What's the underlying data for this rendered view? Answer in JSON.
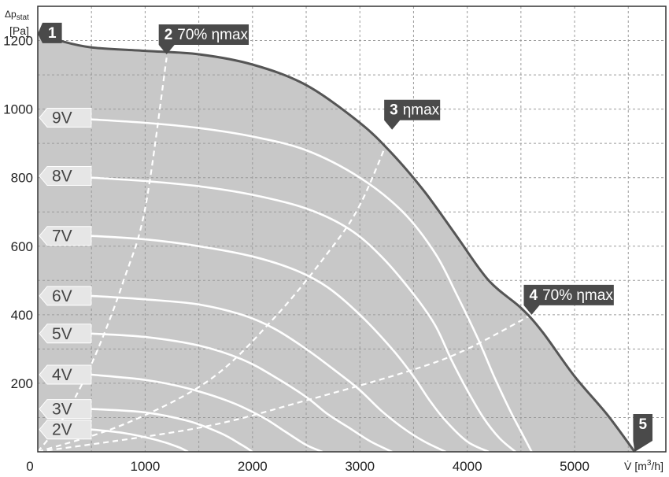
{
  "chart_data": {
    "type": "line",
    "y_axis_label": {
      "line1": "Δp",
      "line1_sub": "stat",
      "line2": "[Pa]"
    },
    "x_axis_label": {
      "symbol": "V̇",
      "unit_pre": "[m",
      "unit_sup": "3",
      "unit_post": "/h]"
    },
    "xlim": [
      0,
      5850
    ],
    "ylim": [
      0,
      1300
    ],
    "x_ticks": [
      0,
      1000,
      2000,
      3000,
      4000,
      5000
    ],
    "y_ticks": [
      200,
      400,
      600,
      800,
      1000,
      1200
    ],
    "grid": true,
    "colors": {
      "fill": "#c8c8c8",
      "curve": "#555555",
      "speed": "#ffffff",
      "marker": "#4a4a4a",
      "badge": "#e6e6e6"
    },
    "envelope": [
      [
        0,
        1220
      ],
      [
        200,
        1200
      ],
      [
        500,
        1180
      ],
      [
        1000,
        1170
      ],
      [
        1500,
        1160
      ],
      [
        2000,
        1130
      ],
      [
        2500,
        1070
      ],
      [
        3000,
        960
      ],
      [
        3300,
        870
      ],
      [
        3600,
        760
      ],
      [
        3900,
        630
      ],
      [
        4200,
        500
      ],
      [
        4500,
        420
      ],
      [
        4700,
        350
      ],
      [
        5000,
        220
      ],
      [
        5300,
        110
      ],
      [
        5560,
        0
      ]
    ],
    "speed_curves": [
      {
        "name": "9V",
        "points": [
          [
            500,
            970
          ],
          [
            1000,
            960
          ],
          [
            1500,
            945
          ],
          [
            2000,
            920
          ],
          [
            2500,
            880
          ],
          [
            3000,
            800
          ],
          [
            3400,
            700
          ],
          [
            3700,
            580
          ],
          [
            3900,
            460
          ],
          [
            4100,
            330
          ],
          [
            4250,
            220
          ],
          [
            4400,
            120
          ],
          [
            4500,
            60
          ],
          [
            4600,
            0
          ]
        ]
      },
      {
        "name": "8V",
        "points": [
          [
            500,
            800
          ],
          [
            1000,
            790
          ],
          [
            1500,
            775
          ],
          [
            2000,
            750
          ],
          [
            2500,
            710
          ],
          [
            2900,
            650
          ],
          [
            3200,
            570
          ],
          [
            3500,
            460
          ],
          [
            3700,
            370
          ],
          [
            3850,
            270
          ],
          [
            4000,
            180
          ],
          [
            4150,
            100
          ],
          [
            4300,
            40
          ],
          [
            4450,
            0
          ]
        ]
      },
      {
        "name": "7V",
        "points": [
          [
            500,
            630
          ],
          [
            1000,
            620
          ],
          [
            1500,
            600
          ],
          [
            2000,
            570
          ],
          [
            2400,
            530
          ],
          [
            2700,
            480
          ],
          [
            3000,
            400
          ],
          [
            3300,
            300
          ],
          [
            3500,
            220
          ],
          [
            3650,
            150
          ],
          [
            3800,
            90
          ],
          [
            4000,
            30
          ],
          [
            4200,
            0
          ]
        ]
      },
      {
        "name": "6V",
        "points": [
          [
            500,
            455
          ],
          [
            1000,
            445
          ],
          [
            1500,
            430
          ],
          [
            1900,
            400
          ],
          [
            2200,
            360
          ],
          [
            2500,
            300
          ],
          [
            2800,
            230
          ],
          [
            3000,
            180
          ],
          [
            3200,
            120
          ],
          [
            3400,
            70
          ],
          [
            3600,
            30
          ],
          [
            3800,
            0
          ]
        ]
      },
      {
        "name": "5V",
        "points": [
          [
            500,
            345
          ],
          [
            1000,
            335
          ],
          [
            1500,
            310
          ],
          [
            1900,
            270
          ],
          [
            2200,
            220
          ],
          [
            2500,
            160
          ],
          [
            2700,
            110
          ],
          [
            2900,
            70
          ],
          [
            3100,
            30
          ],
          [
            3300,
            0
          ]
        ]
      },
      {
        "name": "4V",
        "points": [
          [
            500,
            225
          ],
          [
            1000,
            210
          ],
          [
            1400,
            185
          ],
          [
            1800,
            145
          ],
          [
            2100,
            100
          ],
          [
            2300,
            60
          ],
          [
            2500,
            20
          ],
          [
            2650,
            0
          ]
        ]
      },
      {
        "name": "3V",
        "points": [
          [
            500,
            125
          ],
          [
            1000,
            115
          ],
          [
            1400,
            90
          ],
          [
            1700,
            55
          ],
          [
            1900,
            20
          ],
          [
            2000,
            0
          ]
        ]
      },
      {
        "name": "2V",
        "points": [
          [
            500,
            65
          ],
          [
            800,
            55
          ],
          [
            1100,
            35
          ],
          [
            1300,
            15
          ],
          [
            1400,
            0
          ]
        ]
      }
    ],
    "efficiency_lines": [
      {
        "name": "70% ηmax (left)",
        "points": [
          [
            0,
            0
          ],
          [
            200,
            80
          ],
          [
            400,
            190
          ],
          [
            600,
            330
          ],
          [
            800,
            500
          ],
          [
            1000,
            710
          ],
          [
            1200,
            1150
          ]
        ]
      },
      {
        "name": "ηmax",
        "points": [
          [
            0,
            0
          ],
          [
            800,
            80
          ],
          [
            1600,
            210
          ],
          [
            2200,
            390
          ],
          [
            2700,
            580
          ],
          [
            3000,
            720
          ],
          [
            3300,
            940
          ]
        ]
      },
      {
        "name": "70% ηmax (right)",
        "points": [
          [
            0,
            0
          ],
          [
            1500,
            70
          ],
          [
            2500,
            150
          ],
          [
            3500,
            240
          ],
          [
            4000,
            300
          ],
          [
            4600,
            400
          ]
        ]
      }
    ],
    "markers": [
      {
        "id": "1",
        "num": "1",
        "text": "",
        "x": 0,
        "y": 1220
      },
      {
        "id": "2",
        "num": "2",
        "text": "70% ηmax",
        "x": 1200,
        "y": 1160
      },
      {
        "id": "3",
        "num": "3",
        "text": "ηmax",
        "x": 3300,
        "y": 940
      },
      {
        "id": "4",
        "num": "4",
        "text": "70% ηmax",
        "x": 4600,
        "y": 400
      },
      {
        "id": "5",
        "num": "5",
        "text": "",
        "x": 5560,
        "y": 0
      }
    ],
    "speed_labels": [
      {
        "text": "9V",
        "y": 975
      },
      {
        "text": "8V",
        "y": 805
      },
      {
        "text": "7V",
        "y": 630
      },
      {
        "text": "6V",
        "y": 455
      },
      {
        "text": "5V",
        "y": 345
      },
      {
        "text": "4V",
        "y": 225
      },
      {
        "text": "3V",
        "y": 125
      },
      {
        "text": "2V",
        "y": 65
      }
    ]
  }
}
